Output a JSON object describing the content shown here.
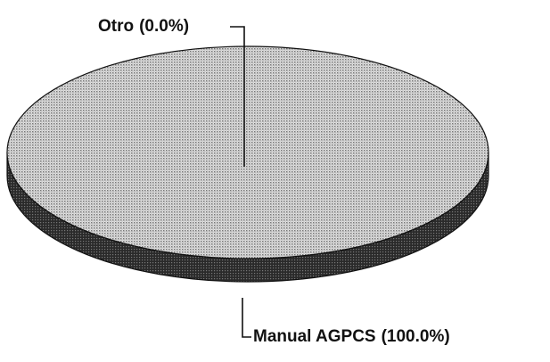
{
  "chart_data": {
    "type": "pie",
    "categories": [
      "Otro",
      "Manual AGPCS"
    ],
    "values": [
      0,
      100
    ],
    "value_labels": [
      "(0.0%)",
      "(100.0%)"
    ],
    "colors": [
      "#9a9a9a",
      "#b8b8b8"
    ]
  }
}
